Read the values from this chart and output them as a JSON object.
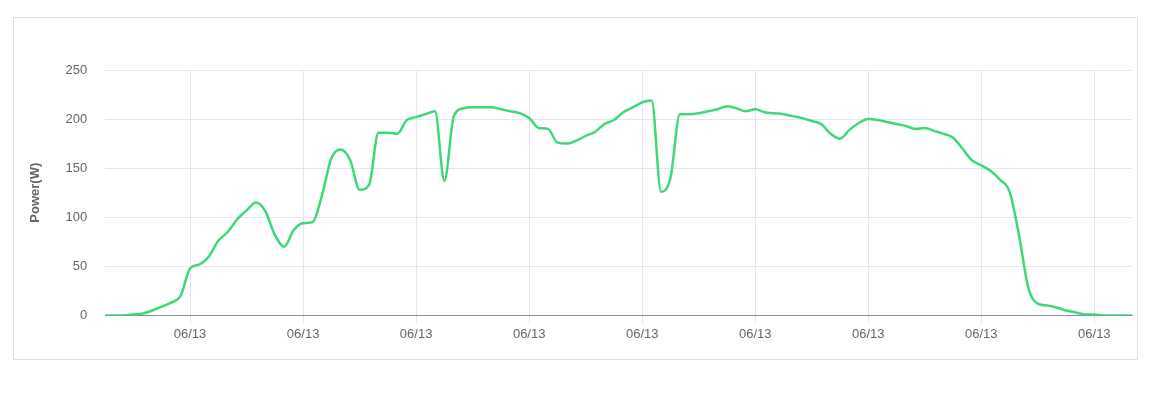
{
  "chart_data": {
    "type": "line",
    "ylabel": "Power(W)",
    "ylim": [
      0,
      250
    ],
    "yticks": [
      0,
      50,
      100,
      150,
      200,
      250
    ],
    "categories": [
      null,
      null,
      null,
      null,
      null,
      null,
      null,
      null,
      null,
      "06/13",
      null,
      null,
      null,
      null,
      null,
      null,
      null,
      null,
      null,
      null,
      null,
      "06/13",
      null,
      null,
      null,
      null,
      null,
      null,
      null,
      null,
      null,
      null,
      null,
      "06/13",
      null,
      null,
      null,
      null,
      null,
      null,
      null,
      null,
      null,
      null,
      null,
      "06/13",
      null,
      null,
      null,
      null,
      null,
      null,
      null,
      null,
      null,
      null,
      null,
      "06/13",
      null,
      null,
      null,
      null,
      null,
      null,
      null,
      null,
      null,
      null,
      null,
      "06/13",
      null,
      null,
      null,
      null,
      null,
      null,
      null,
      null,
      null,
      null,
      null,
      "06/13",
      null,
      null,
      null,
      null,
      null,
      null,
      null,
      null,
      null,
      null,
      null,
      "06/13",
      null,
      null,
      null,
      null,
      null,
      null,
      null,
      null,
      null,
      null,
      null,
      "06/13",
      null,
      null,
      null,
      null
    ],
    "grid": true,
    "legend": false,
    "series": [
      {
        "color": "#3ed878",
        "values": [
          0,
          0,
          0,
          1,
          2,
          5,
          9,
          13,
          20,
          48,
          52,
          60,
          76,
          85,
          98,
          107,
          115,
          106,
          82,
          70,
          87,
          94,
          95,
          122,
          160,
          169,
          158,
          128,
          133,
          186,
          186,
          185,
          199,
          202,
          205,
          208,
          137,
          203,
          211,
          212,
          212,
          212,
          210,
          208,
          206,
          201,
          191,
          190,
          176,
          175,
          178,
          183,
          187,
          195,
          199,
          207,
          212,
          217,
          219,
          126,
          140,
          205,
          205,
          206,
          208,
          210,
          213,
          211,
          208,
          210,
          207,
          206,
          205,
          203,
          201,
          198,
          195,
          185,
          180,
          189,
          196,
          200,
          199,
          197,
          195,
          193,
          190,
          191,
          188,
          185,
          181,
          170,
          158,
          153,
          147,
          138,
          126,
          82,
          28,
          12,
          10,
          8,
          5,
          3,
          1,
          1,
          0,
          0,
          0,
          0
        ]
      }
    ]
  }
}
